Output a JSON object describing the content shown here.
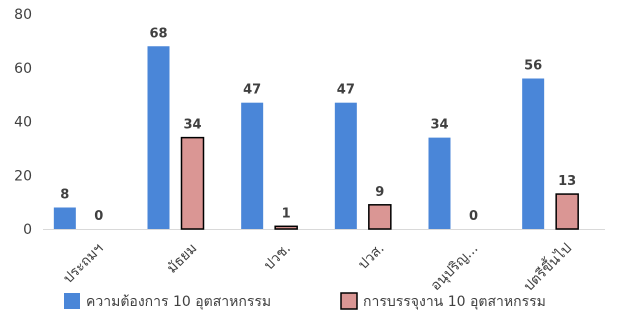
{
  "chart_data": {
    "type": "bar",
    "categories": [
      "ประถมฯ",
      "มัธยม",
      "ปวช.",
      "ปวส.",
      "อนุปริญ...",
      "ปตรีขึ้นไป"
    ],
    "series": [
      {
        "name": "ความต้องการ 10 อุตสาหกรรม",
        "values": [
          8,
          68,
          47,
          47,
          34,
          56
        ],
        "color": "#4A86D8",
        "outline": "none"
      },
      {
        "name": "การบรรจุงาน 10 อุตสาหกรรม",
        "values": [
          0,
          34,
          1,
          9,
          0,
          13
        ],
        "color": "#DA9694",
        "outline": "#000000"
      }
    ],
    "ylim": [
      0,
      80
    ],
    "yticks": [
      0,
      20,
      40,
      60,
      80
    ],
    "grid": false,
    "data_labels": true,
    "legend_position": "bottom"
  }
}
